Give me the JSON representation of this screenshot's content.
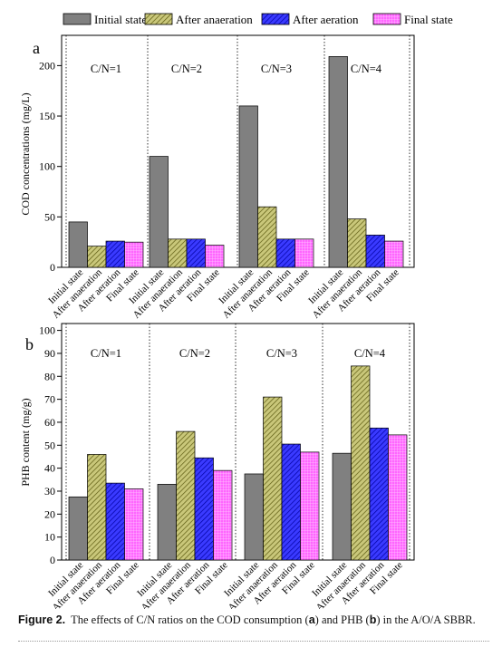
{
  "legend": [
    {
      "label": "Initial state",
      "color": "#808080",
      "pattern": "solid"
    },
    {
      "label": "After anaeration",
      "color": "#9c9a2e",
      "pattern": "diagonal-hatch"
    },
    {
      "label": "After aeration",
      "color": "#1c1cf0",
      "pattern": "diagonal-hatch"
    },
    {
      "label": "Final state",
      "color": "#ff66ff",
      "pattern": "grid-hatch"
    }
  ],
  "caption": {
    "prefix": "Figure 2.",
    "text_1": "The effects of C/N ratios on the COD consumption (",
    "ref_a": "a",
    "text_2": ") and PHB (",
    "ref_b": "b",
    "text_3": ") in the A/O/A SBBR."
  },
  "chart_data": [
    {
      "panel": "a",
      "type": "bar",
      "ylabel": "COD concentrations (mg/L)",
      "ylim": [
        0,
        230
      ],
      "yticks": [
        0,
        50,
        100,
        150,
        200
      ],
      "groups": [
        "C/N=1",
        "C/N=2",
        "C/N=3",
        "C/N=4"
      ],
      "categories": [
        "Initial state",
        "After anaeration",
        "After aeration",
        "Final state"
      ],
      "series": [
        {
          "name": "Initial state",
          "values": [
            45,
            110,
            160,
            209
          ]
        },
        {
          "name": "After anaeration",
          "values": [
            21,
            28,
            60,
            48
          ]
        },
        {
          "name": "After aeration",
          "values": [
            26,
            28,
            28,
            32
          ]
        },
        {
          "name": "Final state",
          "values": [
            25,
            22,
            28,
            26
          ]
        }
      ],
      "grid": false,
      "legend_position": "top"
    },
    {
      "panel": "b",
      "type": "bar",
      "ylabel": "PHB content (mg/g)",
      "ylim": [
        0,
        103
      ],
      "yticks": [
        0,
        10,
        20,
        30,
        40,
        50,
        60,
        70,
        80,
        90,
        100
      ],
      "groups": [
        "C/N=1",
        "C/N=2",
        "C/N=3",
        "C/N=4"
      ],
      "categories": [
        "Initial state",
        "After anaeration",
        "After aeration",
        "Final state"
      ],
      "series": [
        {
          "name": "Initial state",
          "values": [
            27.5,
            33,
            37.5,
            46.5
          ]
        },
        {
          "name": "After anaeration",
          "values": [
            46,
            56,
            71,
            84.5
          ]
        },
        {
          "name": "After aeration",
          "values": [
            33.5,
            44.5,
            50.5,
            57.5
          ]
        },
        {
          "name": "Final state",
          "values": [
            31,
            39,
            47,
            54.5
          ]
        }
      ],
      "grid": false,
      "legend_position": "top"
    }
  ]
}
